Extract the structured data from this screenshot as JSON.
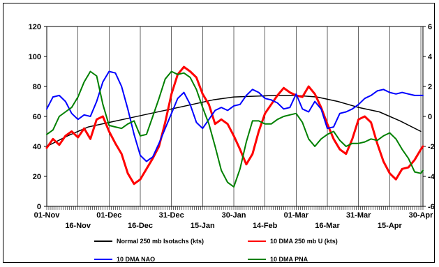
{
  "chart_data": {
    "type": "line",
    "title": "",
    "xlabel": "",
    "ylabel": "",
    "y_left": {
      "lim": [
        0,
        120
      ],
      "ticks": [
        0,
        20,
        40,
        60,
        80,
        100,
        120
      ]
    },
    "y_right": {
      "lim": [
        -6,
        6
      ],
      "ticks": [
        -6,
        -4,
        -2,
        0,
        2,
        4,
        6
      ]
    },
    "x_range_days": [
      0,
      181
    ],
    "x_labels_row1": [
      {
        "day": 0,
        "label": "01-Nov"
      },
      {
        "day": 30,
        "label": "01-Dec"
      },
      {
        "day": 60,
        "label": "31-Dec"
      },
      {
        "day": 90,
        "label": "30-Jan"
      },
      {
        "day": 120,
        "label": "01-Mar"
      },
      {
        "day": 150,
        "label": "31-Mar"
      },
      {
        "day": 180,
        "label": "30-Apr"
      }
    ],
    "x_labels_row2": [
      {
        "day": 15,
        "label": "16-Nov"
      },
      {
        "day": 45,
        "label": "16-Dec"
      },
      {
        "day": 75,
        "label": "15-Jan"
      },
      {
        "day": 105,
        "label": "14-Feb"
      },
      {
        "day": 135,
        "label": "16-Mar"
      },
      {
        "day": 165,
        "label": "15-Apr"
      }
    ],
    "grid": "vertical",
    "legend_position": "bottom",
    "series": [
      {
        "name": "Normal 250 mb Isotachs (kts)",
        "color": "#000000",
        "axis": "left",
        "x": [
          0,
          10,
          20,
          30,
          40,
          50,
          60,
          70,
          80,
          90,
          100,
          110,
          120,
          130,
          140,
          150,
          160,
          170,
          180
        ],
        "y": [
          40,
          47,
          53,
          56,
          59,
          62,
          65,
          68,
          71,
          73,
          73.5,
          74,
          74,
          73,
          70,
          66,
          63,
          57,
          50
        ]
      },
      {
        "name": "10 DMA 250 mb U (kts)",
        "color": "#ff0000",
        "axis": "left",
        "x": [
          0,
          3,
          6,
          9,
          12,
          15,
          18,
          21,
          24,
          27,
          30,
          33,
          36,
          39,
          42,
          45,
          48,
          51,
          54,
          57,
          60,
          63,
          66,
          69,
          72,
          75,
          78,
          81,
          84,
          87,
          90,
          93,
          96,
          99,
          102,
          105,
          108,
          111,
          114,
          117,
          120,
          123,
          126,
          129,
          132,
          135,
          138,
          141,
          144,
          147,
          150,
          153,
          156,
          159,
          162,
          165,
          168,
          171,
          174,
          177,
          180,
          181
        ],
        "y": [
          39,
          45,
          41,
          47,
          50,
          46,
          52,
          45,
          58,
          60,
          50,
          42,
          35,
          22,
          15,
          18,
          25,
          32,
          40,
          56,
          75,
          88,
          93,
          90,
          86,
          75,
          68,
          55,
          58,
          55,
          47,
          38,
          28,
          35,
          50,
          62,
          68,
          74,
          79,
          76,
          74,
          73,
          80,
          75,
          66,
          55,
          45,
          38,
          35,
          45,
          58,
          60,
          56,
          42,
          30,
          22,
          18,
          25,
          26,
          31,
          38,
          40
        ]
      },
      {
        "name": "10 DMA NAO",
        "color": "#0000ff",
        "axis": "right",
        "x": [
          0,
          3,
          6,
          9,
          12,
          15,
          18,
          21,
          24,
          27,
          30,
          33,
          36,
          39,
          42,
          45,
          48,
          51,
          54,
          57,
          60,
          63,
          66,
          69,
          72,
          75,
          78,
          81,
          84,
          87,
          90,
          93,
          96,
          99,
          102,
          105,
          108,
          111,
          114,
          117,
          120,
          123,
          126,
          129,
          132,
          135,
          138,
          141,
          144,
          147,
          150,
          153,
          156,
          159,
          162,
          165,
          168,
          171,
          174,
          177,
          180,
          181
        ],
        "y": [
          0.5,
          1.3,
          1.4,
          1.0,
          0.2,
          -0.2,
          0.1,
          0.0,
          1.0,
          2.3,
          3.0,
          2.9,
          2.0,
          0.5,
          -1.2,
          -2.6,
          -3.0,
          -2.7,
          -1.8,
          -0.8,
          0.2,
          1.2,
          1.6,
          0.8,
          -0.4,
          -0.8,
          -0.2,
          0.4,
          0.6,
          0.4,
          0.7,
          0.8,
          1.4,
          1.8,
          1.6,
          1.2,
          1.1,
          0.9,
          0.5,
          0.6,
          1.5,
          0.5,
          0.3,
          1.0,
          0.5,
          -0.8,
          -0.7,
          0.2,
          0.3,
          0.5,
          0.8,
          1.2,
          1.4,
          1.7,
          1.8,
          1.6,
          1.5,
          1.6,
          1.5,
          1.4,
          1.4,
          1.4
        ]
      },
      {
        "name": "10 DMA PNA",
        "color": "#008000",
        "axis": "right",
        "x": [
          0,
          3,
          6,
          9,
          12,
          15,
          18,
          21,
          24,
          27,
          30,
          33,
          36,
          39,
          42,
          45,
          48,
          51,
          54,
          57,
          60,
          63,
          66,
          69,
          72,
          75,
          78,
          81,
          84,
          87,
          90,
          93,
          96,
          99,
          102,
          105,
          108,
          111,
          114,
          117,
          120,
          123,
          126,
          129,
          132,
          135,
          138,
          141,
          144,
          147,
          150,
          153,
          156,
          159,
          162,
          165,
          168,
          171,
          174,
          177,
          180,
          181
        ],
        "y": [
          -1.2,
          -0.9,
          0.0,
          0.3,
          0.6,
          1.3,
          2.3,
          3.0,
          2.7,
          0.8,
          -0.6,
          -0.7,
          -0.8,
          -0.5,
          -0.3,
          -1.3,
          -1.2,
          0.0,
          1.2,
          2.5,
          3.0,
          2.8,
          2.9,
          2.6,
          1.8,
          0.6,
          -0.5,
          -2.0,
          -3.6,
          -4.4,
          -4.7,
          -3.5,
          -1.7,
          -0.3,
          -0.3,
          -0.5,
          -0.5,
          -0.2,
          0.0,
          0.1,
          0.2,
          -0.4,
          -1.5,
          -2.0,
          -1.5,
          -1.2,
          -1.0,
          -1.6,
          -2.0,
          -1.8,
          -1.8,
          -1.7,
          -1.5,
          -1.6,
          -1.3,
          -1.1,
          -1.5,
          -2.2,
          -2.8,
          -3.7,
          -3.8,
          -3.6
        ]
      }
    ]
  }
}
